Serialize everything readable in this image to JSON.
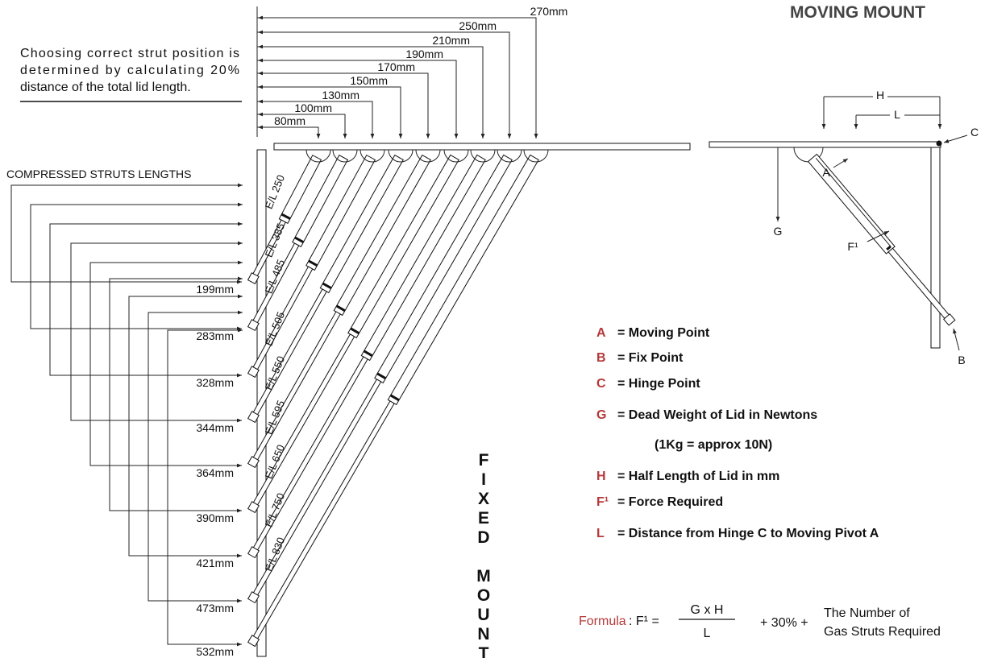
{
  "title": "MOVING MOUNT",
  "note": {
    "lines": [
      "Choosing correct strut position is",
      "determined by calculating 20%",
      "distance of the total lid length."
    ]
  },
  "top_dimensions": [
    "80mm",
    "100mm",
    "130mm",
    "150mm",
    "170mm",
    "190mm",
    "210mm",
    "250mm",
    "270mm"
  ],
  "compressed_label": "COMPRESSED STRUTS LENGTHS",
  "compressed_lengths": [
    "199mm",
    "283mm",
    "328mm",
    "344mm",
    "364mm",
    "390mm",
    "421mm",
    "473mm",
    "532mm"
  ],
  "strut_labels": [
    "E/L 250",
    "E/L 385",
    "E/L 485",
    "E/L 505",
    "E/L 550",
    "E/L 595",
    "E/L 650",
    "E/L 750",
    "E/L 830"
  ],
  "fixed_mount": "FIXED MOUNT",
  "moving_labels": {
    "H": "H",
    "L": "L",
    "C": "C",
    "A": "A",
    "G": "G",
    "F": "F¹",
    "B": "B"
  },
  "legend": [
    {
      "key": "A",
      "text": "= Moving Point"
    },
    {
      "key": "B",
      "text": "= Fix Point"
    },
    {
      "key": "C",
      "text": "= Hinge Point"
    },
    {
      "key": "G",
      "text": "= Dead Weight of Lid in Newtons"
    },
    {
      "key": "H",
      "text": "= Half Length of Lid in mm"
    },
    {
      "key": "F¹",
      "text": "= Force Required"
    },
    {
      "key": "L",
      "text": "= Distance from Hinge C to Moving Pivot A"
    }
  ],
  "legend_note": "(1Kg = approx 10N)",
  "formula": {
    "label": "Formula",
    "lhs": ": F¹ =",
    "numerator": "G x H",
    "denominator": "L",
    "plus": "+ 30% +",
    "result_line1": "The Number of",
    "result_line2": "Gas Struts Required"
  }
}
